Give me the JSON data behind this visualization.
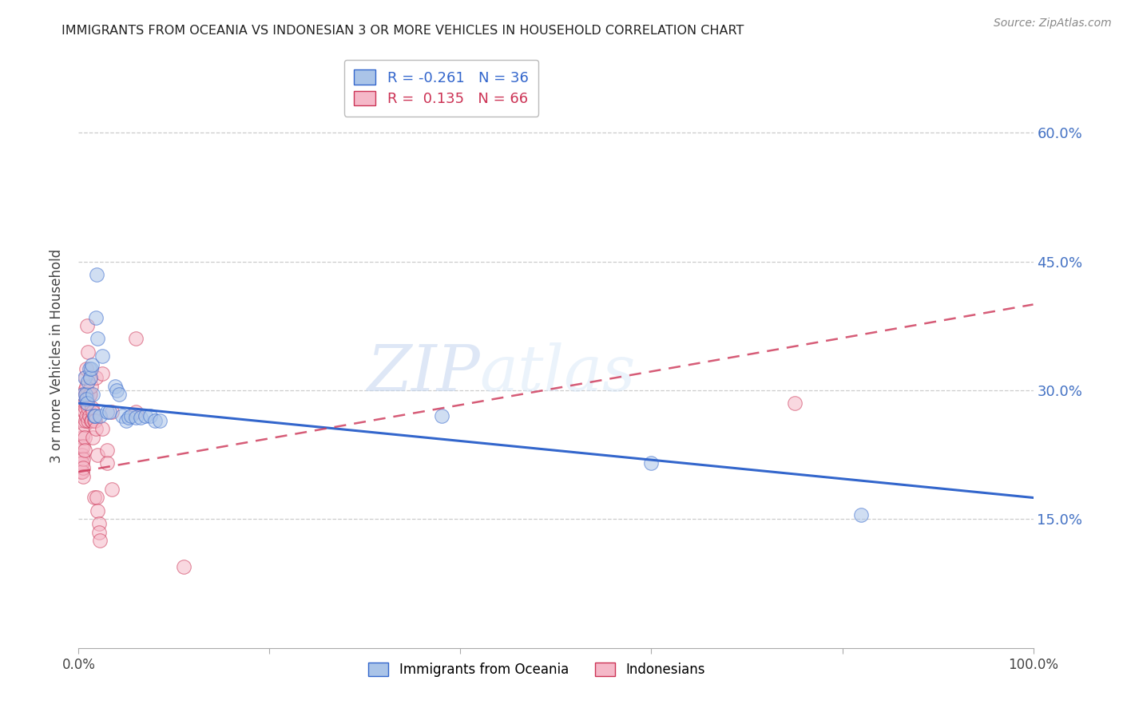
{
  "title": "IMMIGRANTS FROM OCEANIA VS INDONESIAN 3 OR MORE VEHICLES IN HOUSEHOLD CORRELATION CHART",
  "source": "Source: ZipAtlas.com",
  "ylabel": "3 or more Vehicles in Household",
  "ytick_labels": [
    "15.0%",
    "30.0%",
    "45.0%",
    "60.0%"
  ],
  "ytick_values": [
    0.15,
    0.3,
    0.45,
    0.6
  ],
  "xlim": [
    0.0,
    1.0
  ],
  "ylim": [
    0.0,
    0.68
  ],
  "legend_blue_r": "-0.261",
  "legend_blue_n": "36",
  "legend_pink_r": "0.135",
  "legend_pink_n": "66",
  "legend_label_blue": "Immigrants from Oceania",
  "legend_label_pink": "Indonesians",
  "blue_color": "#aac4e8",
  "pink_color": "#f5b8c8",
  "trendline_blue_color": "#3366cc",
  "trendline_pink_color": "#cc3355",
  "watermark_color": "#d0dff5",
  "blue_points": [
    [
      0.005,
      0.295
    ],
    [
      0.006,
      0.315
    ],
    [
      0.007,
      0.295
    ],
    [
      0.008,
      0.29
    ],
    [
      0.009,
      0.285
    ],
    [
      0.01,
      0.31
    ],
    [
      0.011,
      0.325
    ],
    [
      0.012,
      0.315
    ],
    [
      0.013,
      0.325
    ],
    [
      0.014,
      0.33
    ],
    [
      0.015,
      0.295
    ],
    [
      0.016,
      0.27
    ],
    [
      0.017,
      0.27
    ],
    [
      0.018,
      0.385
    ],
    [
      0.019,
      0.435
    ],
    [
      0.02,
      0.36
    ],
    [
      0.022,
      0.27
    ],
    [
      0.025,
      0.34
    ],
    [
      0.03,
      0.275
    ],
    [
      0.032,
      0.275
    ],
    [
      0.038,
      0.305
    ],
    [
      0.04,
      0.3
    ],
    [
      0.042,
      0.295
    ],
    [
      0.046,
      0.27
    ],
    [
      0.05,
      0.265
    ],
    [
      0.052,
      0.268
    ],
    [
      0.055,
      0.27
    ],
    [
      0.06,
      0.268
    ],
    [
      0.065,
      0.268
    ],
    [
      0.07,
      0.27
    ],
    [
      0.075,
      0.27
    ],
    [
      0.08,
      0.265
    ],
    [
      0.085,
      0.265
    ],
    [
      0.38,
      0.27
    ],
    [
      0.6,
      0.215
    ],
    [
      0.82,
      0.155
    ]
  ],
  "pink_points": [
    [
      0.002,
      0.225
    ],
    [
      0.002,
      0.205
    ],
    [
      0.003,
      0.235
    ],
    [
      0.003,
      0.215
    ],
    [
      0.003,
      0.205
    ],
    [
      0.004,
      0.245
    ],
    [
      0.004,
      0.225
    ],
    [
      0.004,
      0.215
    ],
    [
      0.004,
      0.205
    ],
    [
      0.005,
      0.295
    ],
    [
      0.005,
      0.265
    ],
    [
      0.005,
      0.25
    ],
    [
      0.005,
      0.235
    ],
    [
      0.005,
      0.22
    ],
    [
      0.005,
      0.21
    ],
    [
      0.005,
      0.2
    ],
    [
      0.006,
      0.3
    ],
    [
      0.006,
      0.285
    ],
    [
      0.006,
      0.275
    ],
    [
      0.006,
      0.26
    ],
    [
      0.006,
      0.245
    ],
    [
      0.006,
      0.23
    ],
    [
      0.007,
      0.315
    ],
    [
      0.007,
      0.295
    ],
    [
      0.007,
      0.28
    ],
    [
      0.007,
      0.265
    ],
    [
      0.008,
      0.325
    ],
    [
      0.008,
      0.305
    ],
    [
      0.008,
      0.285
    ],
    [
      0.008,
      0.27
    ],
    [
      0.009,
      0.375
    ],
    [
      0.009,
      0.295
    ],
    [
      0.01,
      0.345
    ],
    [
      0.01,
      0.28
    ],
    [
      0.01,
      0.265
    ],
    [
      0.011,
      0.295
    ],
    [
      0.011,
      0.27
    ],
    [
      0.012,
      0.315
    ],
    [
      0.012,
      0.295
    ],
    [
      0.013,
      0.305
    ],
    [
      0.013,
      0.265
    ],
    [
      0.014,
      0.28
    ],
    [
      0.014,
      0.265
    ],
    [
      0.015,
      0.275
    ],
    [
      0.015,
      0.245
    ],
    [
      0.016,
      0.265
    ],
    [
      0.016,
      0.175
    ],
    [
      0.017,
      0.265
    ],
    [
      0.018,
      0.315
    ],
    [
      0.018,
      0.255
    ],
    [
      0.019,
      0.175
    ],
    [
      0.02,
      0.225
    ],
    [
      0.02,
      0.16
    ],
    [
      0.021,
      0.145
    ],
    [
      0.021,
      0.135
    ],
    [
      0.022,
      0.125
    ],
    [
      0.025,
      0.32
    ],
    [
      0.025,
      0.255
    ],
    [
      0.03,
      0.23
    ],
    [
      0.03,
      0.215
    ],
    [
      0.035,
      0.275
    ],
    [
      0.035,
      0.185
    ],
    [
      0.06,
      0.36
    ],
    [
      0.06,
      0.275
    ],
    [
      0.11,
      0.095
    ],
    [
      0.75,
      0.285
    ]
  ],
  "blue_trendline_x": [
    0.0,
    1.0
  ],
  "blue_trendline_y": [
    0.285,
    0.175
  ],
  "pink_trendline_x": [
    0.0,
    1.0
  ],
  "pink_trendline_y": [
    0.205,
    0.4
  ]
}
